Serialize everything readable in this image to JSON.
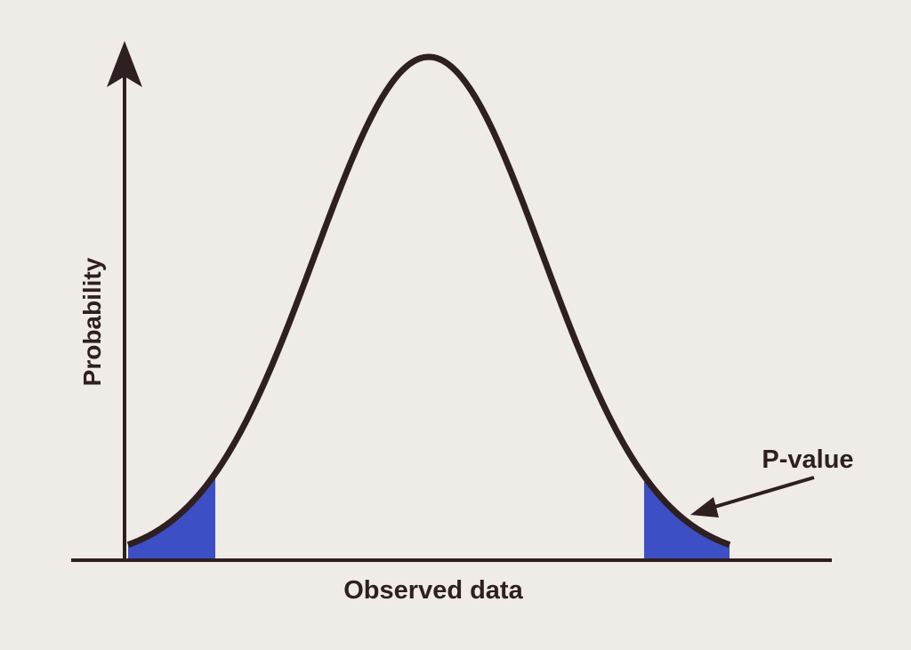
{
  "labels": {
    "y_axis": "Probability",
    "x_axis": "Observed data",
    "annotation": "P-value"
  }
}
